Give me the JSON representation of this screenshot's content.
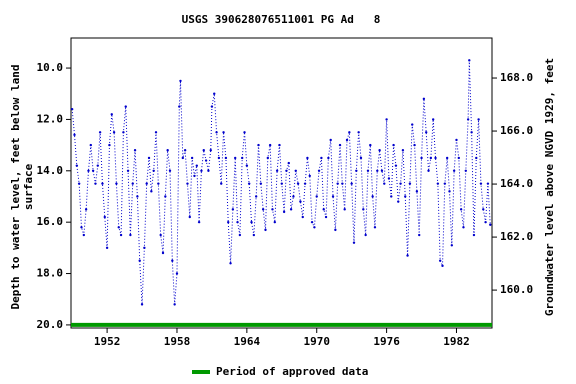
{
  "chart_data": {
    "type": "line",
    "title": "USGS 390628076511001 PG Ad   8",
    "ylabel": [
      "Depth to water level, feet below land",
      "surface"
    ],
    "y2label": "Groundwater level above NGVD 1929, feet",
    "xlim": [
      1948.9,
      1985.05
    ],
    "xticks": [
      1952,
      1958,
      1964,
      1970,
      1976,
      1982
    ],
    "ylim": [
      20.12,
      8.83
    ],
    "yticks": [
      {
        "value": 10,
        "label": "10.0"
      },
      {
        "value": 12,
        "label": "12.0"
      },
      {
        "value": 14,
        "label": "14.0"
      },
      {
        "value": 16,
        "label": "16.0"
      },
      {
        "value": 18,
        "label": "18.0"
      },
      {
        "value": 20,
        "label": "20.0"
      }
    ],
    "y2lim": [
      158.57,
      169.51
    ],
    "y2ticks": [
      {
        "value": 160,
        "label": "160.0"
      },
      {
        "value": 162,
        "label": "162.0"
      },
      {
        "value": 164,
        "label": "164.0"
      },
      {
        "value": 166,
        "label": "166.0"
      },
      {
        "value": 168,
        "label": "168.0"
      }
    ],
    "series": [
      {
        "name": "Depth to water level",
        "color": "#0000cc",
        "x": [
          1949.0,
          1949.2,
          1949.4,
          1949.6,
          1949.8,
          1950.0,
          1950.2,
          1950.4,
          1950.6,
          1950.8,
          1951.0,
          1951.2,
          1951.4,
          1951.6,
          1951.8,
          1952.0,
          1952.2,
          1952.4,
          1952.6,
          1952.8,
          1953.0,
          1953.2,
          1953.4,
          1953.6,
          1953.8,
          1954.0,
          1954.2,
          1954.4,
          1954.6,
          1954.8,
          1955.0,
          1955.2,
          1955.4,
          1955.6,
          1955.8,
          1956.0,
          1956.2,
          1956.4,
          1956.6,
          1956.8,
          1957.0,
          1957.2,
          1957.4,
          1957.6,
          1957.8,
          1958.0,
          1958.2,
          1958.3,
          1958.5,
          1958.7,
          1958.9,
          1959.1,
          1959.3,
          1959.5,
          1959.7,
          1959.9,
          1960.1,
          1960.3,
          1960.5,
          1960.7,
          1960.9,
          1961.0,
          1961.2,
          1961.4,
          1961.6,
          1961.8,
          1962.0,
          1962.2,
          1962.4,
          1962.6,
          1962.8,
          1963.0,
          1963.2,
          1963.4,
          1963.6,
          1963.8,
          1964.0,
          1964.2,
          1964.4,
          1964.6,
          1964.8,
          1965.0,
          1965.2,
          1965.4,
          1965.6,
          1965.8,
          1966.0,
          1966.2,
          1966.4,
          1966.6,
          1966.8,
          1967.0,
          1967.2,
          1967.4,
          1967.6,
          1967.8,
          1968.0,
          1968.2,
          1968.4,
          1968.6,
          1968.8,
          1969.0,
          1969.2,
          1969.4,
          1969.6,
          1969.8,
          1970.0,
          1970.2,
          1970.4,
          1970.6,
          1970.8,
          1971.0,
          1971.2,
          1971.4,
          1971.6,
          1971.8,
          1972.0,
          1972.2,
          1972.4,
          1972.6,
          1972.8,
          1973.0,
          1973.2,
          1973.4,
          1973.6,
          1973.8,
          1974.0,
          1974.2,
          1974.4,
          1974.6,
          1974.8,
          1975.0,
          1975.2,
          1975.4,
          1975.6,
          1975.8,
          1976.0,
          1976.2,
          1976.4,
          1976.6,
          1976.8,
          1977.0,
          1977.2,
          1977.4,
          1977.6,
          1977.8,
          1978.0,
          1978.2,
          1978.4,
          1978.6,
          1978.8,
          1979.0,
          1979.2,
          1979.4,
          1979.6,
          1979.8,
          1980.0,
          1980.2,
          1980.4,
          1980.6,
          1980.8,
          1981.0,
          1981.2,
          1981.4,
          1981.6,
          1981.8,
          1982.0,
          1982.2,
          1982.4,
          1982.6,
          1982.8,
          1983.0,
          1983.1,
          1983.3,
          1983.5,
          1983.7,
          1983.9,
          1984.1,
          1984.3,
          1984.5,
          1984.7,
          1984.9
        ],
        "values": [
          11.6,
          12.6,
          13.8,
          14.5,
          16.2,
          16.5,
          15.5,
          14.0,
          13.0,
          14.0,
          14.5,
          13.8,
          12.5,
          14.5,
          15.8,
          17.0,
          13.0,
          11.8,
          12.5,
          14.5,
          16.2,
          16.5,
          12.5,
          11.5,
          14.0,
          16.5,
          14.5,
          13.2,
          15.0,
          17.5,
          19.2,
          17.0,
          14.5,
          13.5,
          14.8,
          14.0,
          12.5,
          14.5,
          16.5,
          17.2,
          15.0,
          13.2,
          14.0,
          17.5,
          19.2,
          18.0,
          11.5,
          10.5,
          13.5,
          13.2,
          14.5,
          15.8,
          13.5,
          14.2,
          13.8,
          16.0,
          14.0,
          13.2,
          13.6,
          14.0,
          13.2,
          11.5,
          11.0,
          12.5,
          13.5,
          14.5,
          12.5,
          13.5,
          16.0,
          17.6,
          15.5,
          13.5,
          16.0,
          16.5,
          13.5,
          12.5,
          13.8,
          14.5,
          16.0,
          16.5,
          15.0,
          13.0,
          14.5,
          15.5,
          16.3,
          13.5,
          13.0,
          15.5,
          16.0,
          14.0,
          13.0,
          14.5,
          15.6,
          14.0,
          13.7,
          15.5,
          15.0,
          14.0,
          14.5,
          15.2,
          15.8,
          14.5,
          13.5,
          14.2,
          16.0,
          16.2,
          15.0,
          14.0,
          13.5,
          15.5,
          15.8,
          13.5,
          12.8,
          15.0,
          16.3,
          14.5,
          13.0,
          14.5,
          15.5,
          12.8,
          12.5,
          14.5,
          16.8,
          14.0,
          12.5,
          13.5,
          15.5,
          16.5,
          14.0,
          13.0,
          15.0,
          16.2,
          14.0,
          13.2,
          14.0,
          14.5,
          12.0,
          14.3,
          15.0,
          13.0,
          13.8,
          15.2,
          14.5,
          13.2,
          15.0,
          17.3,
          14.5,
          12.2,
          13.0,
          14.8,
          16.5,
          13.5,
          11.2,
          12.5,
          14.0,
          13.5,
          12.0,
          13.5,
          14.5,
          17.5,
          17.7,
          14.5,
          13.5,
          14.8,
          16.9,
          14.0,
          12.8,
          13.5,
          15.5,
          16.2,
          14.0,
          12.0,
          9.7,
          12.5,
          16.5,
          13.5,
          12.0,
          14.5,
          15.5,
          16.0,
          14.5,
          16.1
        ]
      }
    ],
    "approved_period": {
      "label": "Period of approved data",
      "color": "#009900",
      "start": 1948.9,
      "end": 1985.05,
      "depth": 20
    }
  }
}
